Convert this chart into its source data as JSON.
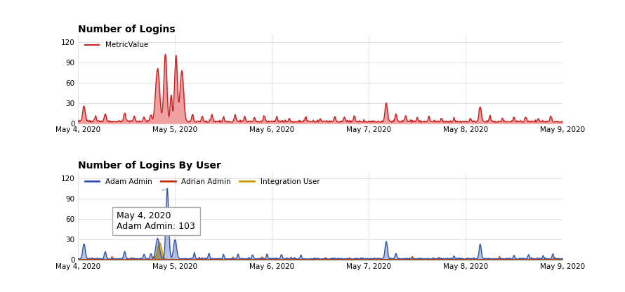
{
  "title1": "Number of Logins",
  "title2": "Number of Logins By User",
  "legend1": [
    "MetricValue"
  ],
  "legend2": [
    "Adam Admin",
    "Adrian Admin",
    "Integration User"
  ],
  "line_color1": "#cc2222",
  "fill_color1": "#f0a0a0",
  "colors2": [
    "#3355aa",
    "#bb3311",
    "#cc9900"
  ],
  "background": "#ffffff",
  "grid_color": "#dddddd",
  "x_labels": [
    "May 4, 2020",
    "May 5, 2020",
    "May 6, 2020",
    "May 7, 2020",
    "May 8, 2020",
    "May 9, 2020"
  ],
  "ylim1": [
    0,
    130
  ],
  "ylim2": [
    0,
    130
  ],
  "yticks": [
    0,
    30,
    60,
    90,
    120
  ],
  "tooltip_text_line1": "May 4, 2020",
  "tooltip_text_line2": "Adam Admin: ",
  "tooltip_bold": "103"
}
